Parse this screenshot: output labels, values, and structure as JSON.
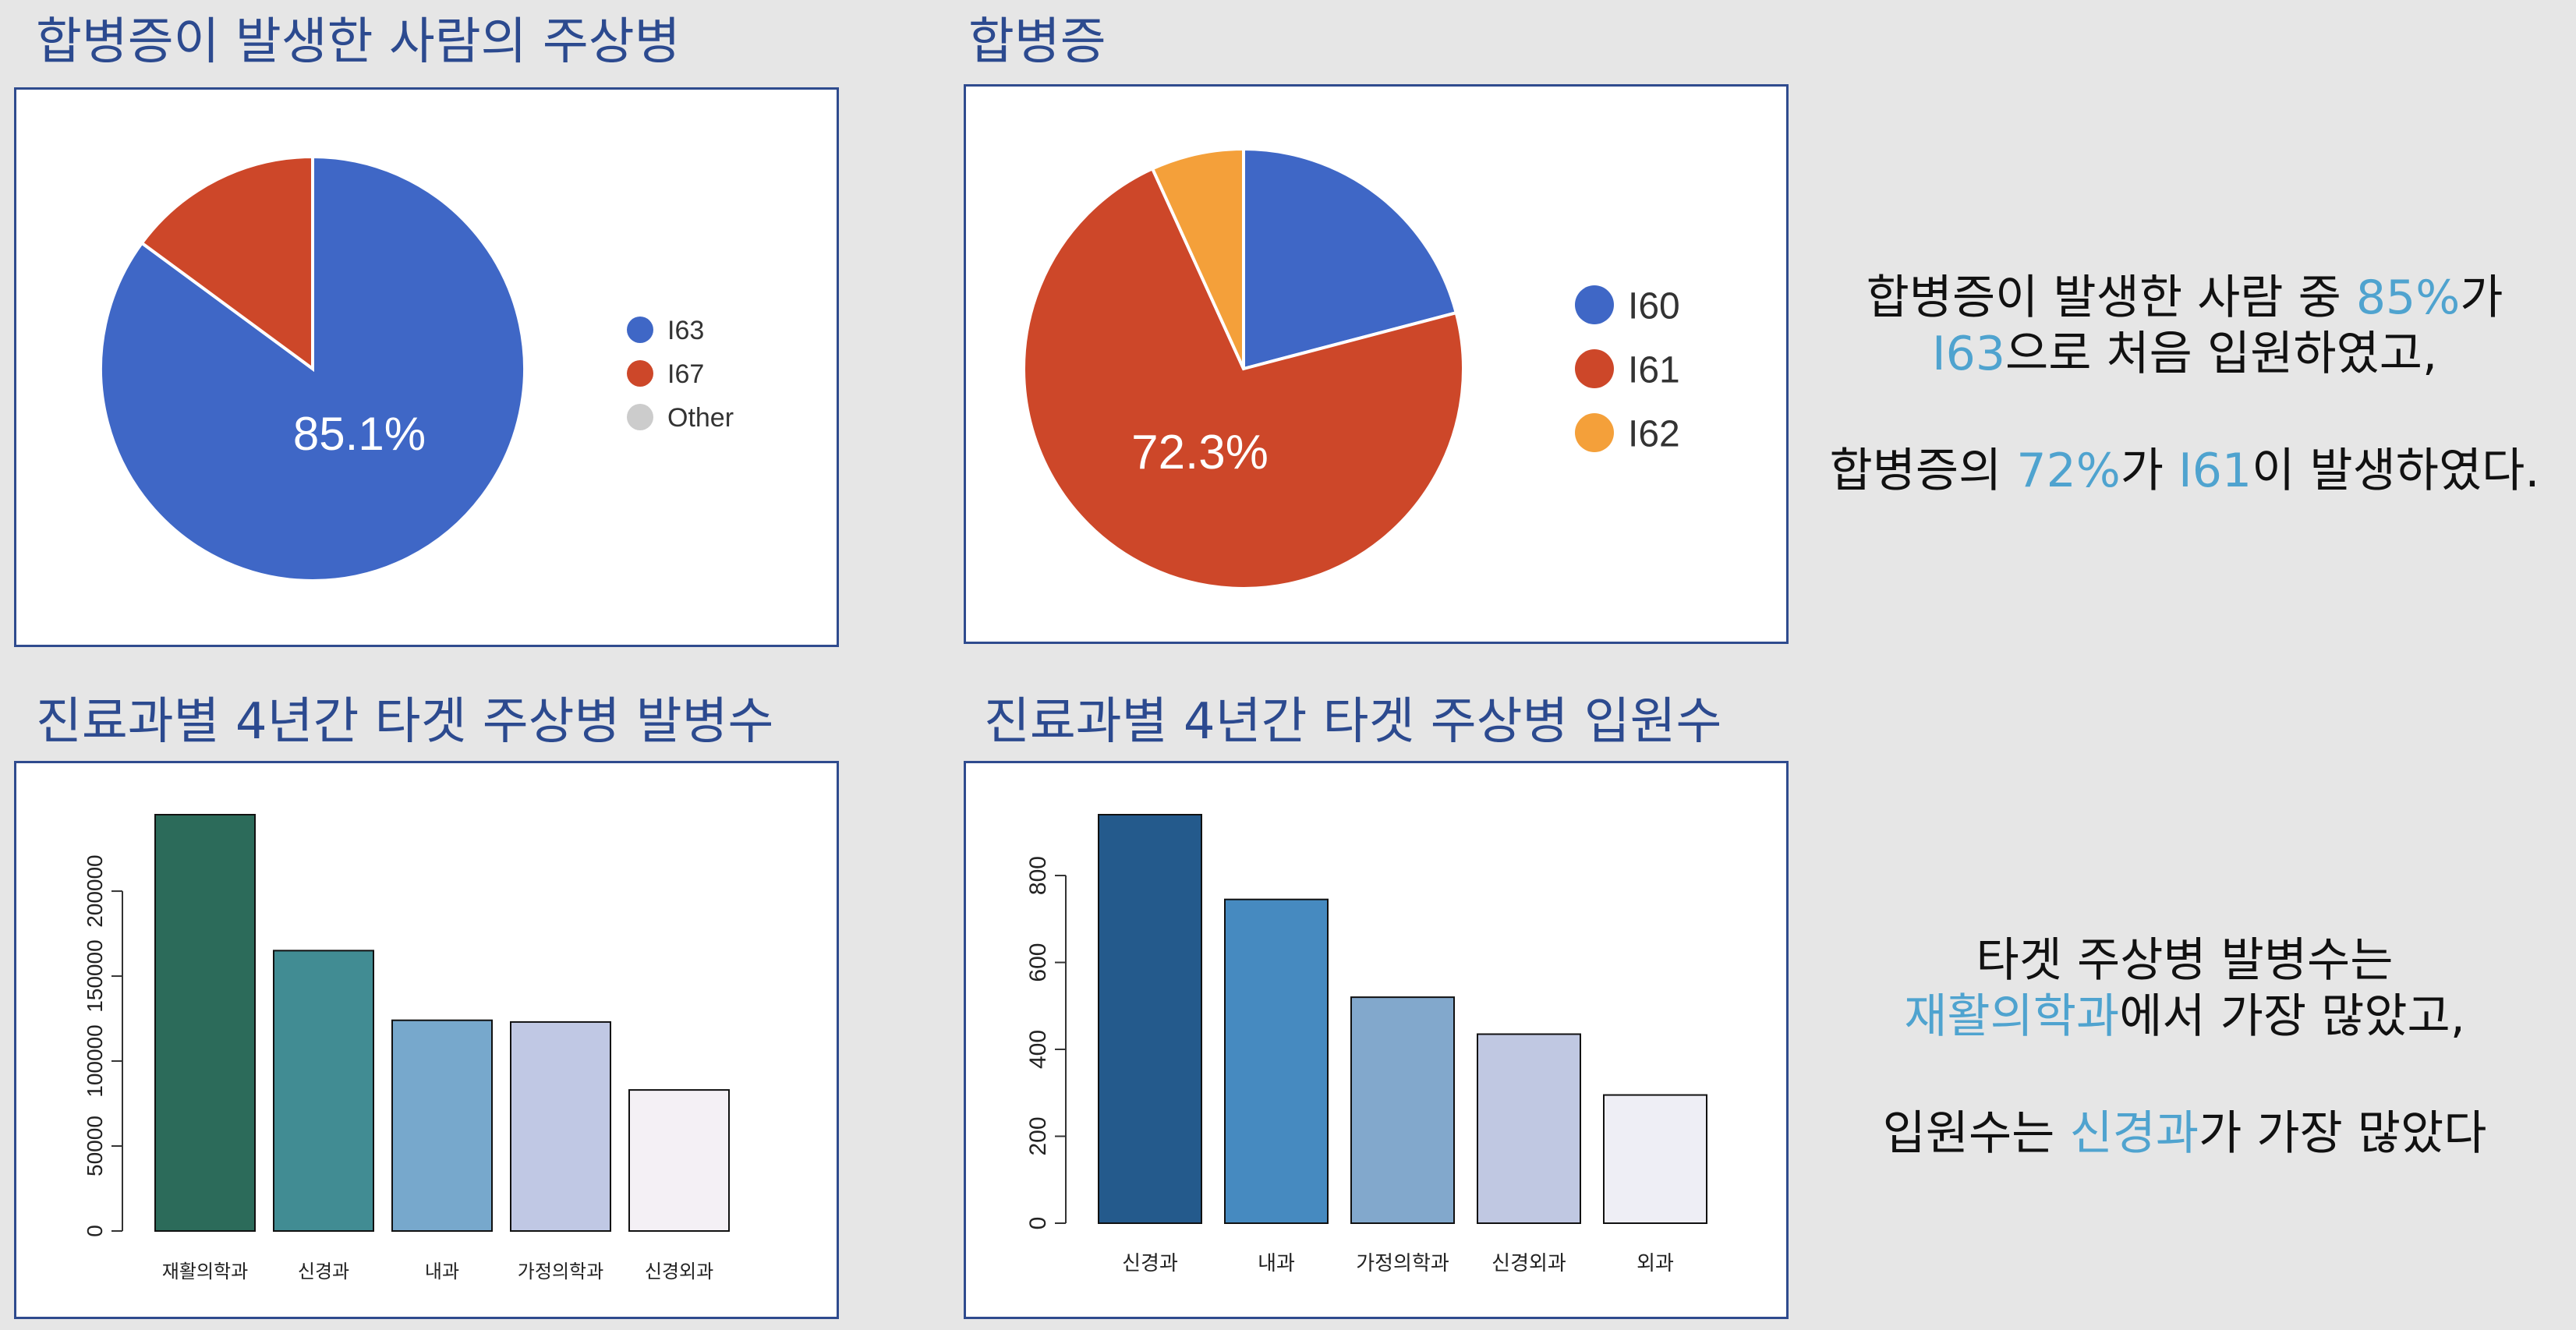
{
  "panels": {
    "pie1": {
      "title": "합병증이 발생한 사람의 주상병"
    },
    "pie2": {
      "title": "합병증"
    },
    "bar1": {
      "title": "진료과별 4년간 타겟 주상병 발병수"
    },
    "bar2": {
      "title": "진료과별 4년간 타겟 주상병 입원수"
    }
  },
  "chart_data": [
    {
      "id": "pie1",
      "type": "pie",
      "title": "합병증이 발생한 사람의 주상병",
      "slices": [
        {
          "label": "I63",
          "value": 85.1,
          "color": "#3f67c6"
        },
        {
          "label": "I67",
          "value": 14.9,
          "color": "#cd4729"
        },
        {
          "label": "Other",
          "value": 0,
          "color": "#cccccc"
        }
      ],
      "data_label": "85.1%",
      "legend": "right"
    },
    {
      "id": "pie2",
      "type": "pie",
      "title": "합병증",
      "slices": [
        {
          "label": "I60",
          "value": 20.9,
          "color": "#3f67c6"
        },
        {
          "label": "I61",
          "value": 72.3,
          "color": "#cd4729"
        },
        {
          "label": "I62",
          "value": 6.8,
          "color": "#f4a03a"
        }
      ],
      "data_label": "72.3%",
      "legend": "right"
    },
    {
      "id": "bar1",
      "type": "bar",
      "title": "진료과별 4년간 타겟 주상병 발병수",
      "categories": [
        "재활의학과",
        "신경과",
        "내과",
        "가정의학과",
        "신경외과"
      ],
      "values": [
        245000,
        165000,
        124000,
        123000,
        83000
      ],
      "colors": [
        "#2c6b5a",
        "#418c93",
        "#77a8cc",
        "#c0c8e4",
        "#f4f0f5"
      ],
      "yticks": [
        0,
        50000,
        100000,
        150000,
        200000
      ],
      "ylim": [
        0,
        245000
      ]
    },
    {
      "id": "bar2",
      "type": "bar",
      "title": "진료과별 4년간 타겟 주상병 입원수",
      "categories": [
        "신경과",
        "내과",
        "가정의학과",
        "신경외과",
        "외과"
      ],
      "values": [
        940,
        745,
        520,
        435,
        295
      ],
      "colors": [
        "#245a8c",
        "#468ac0",
        "#82a8cc",
        "#c0c8e2",
        "#eeeef5"
      ],
      "yticks": [
        0,
        200,
        400,
        600,
        800
      ],
      "ylim": [
        0,
        940
      ]
    }
  ],
  "notes": {
    "pie": {
      "l1": [
        "합병증이 발생한 사람 중 ",
        "85%",
        "가"
      ],
      "l2": [
        "I63",
        "으로 처음 입원하였고,"
      ],
      "l3": [
        "합병증의 ",
        "72%",
        "가 ",
        "I61",
        "이 발생하였다."
      ]
    },
    "bar": {
      "l1": [
        "타겟 주상병 발병수는"
      ],
      "l2": [
        "재활의학과",
        "에서 가장 많았고,"
      ],
      "l3": [
        "입원수는 ",
        "신경과",
        "가 가장 많았다"
      ]
    }
  }
}
